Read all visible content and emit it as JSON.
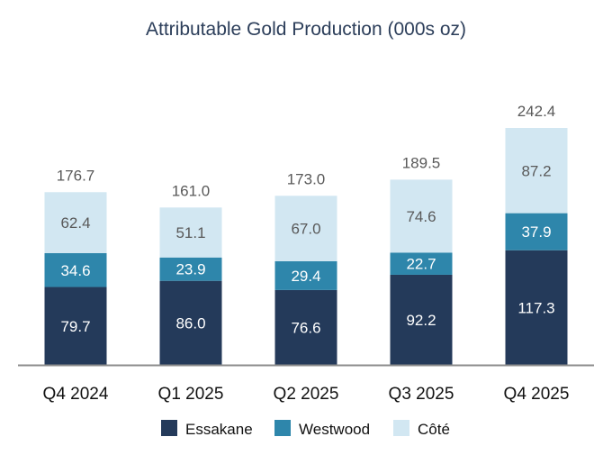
{
  "chart_data": {
    "type": "bar",
    "stacked": true,
    "title": "Attributable Gold Production (000s oz)",
    "xlabel": "",
    "ylabel": "",
    "grid": false,
    "legend_position": "bottom",
    "categories": [
      "Q4 2024",
      "Q1 2025",
      "Q2 2025",
      "Q3 2025",
      "Q4 2025"
    ],
    "series": [
      {
        "name": "Essakane",
        "color": "#243a5a",
        "values": [
          79.7,
          86.0,
          76.6,
          92.2,
          117.3
        ]
      },
      {
        "name": "Westwood",
        "color": "#2e86ab",
        "values": [
          34.6,
          23.9,
          29.4,
          22.7,
          37.9
        ]
      },
      {
        "name": "Côté",
        "color": "#d2e7f2",
        "values": [
          62.4,
          51.1,
          67.0,
          74.6,
          87.2
        ]
      }
    ],
    "totals": [
      "176.7",
      "161.0",
      "173.0",
      "189.5",
      "242.4"
    ],
    "value_labels": [
      [
        "79.7",
        "86.0",
        "76.6",
        "92.2",
        "117.3"
      ],
      [
        "34.6",
        "23.9",
        "29.4",
        "22.7",
        "37.9"
      ],
      [
        "62.4",
        "51.1",
        "67.0",
        "74.6",
        "87.2"
      ]
    ]
  }
}
